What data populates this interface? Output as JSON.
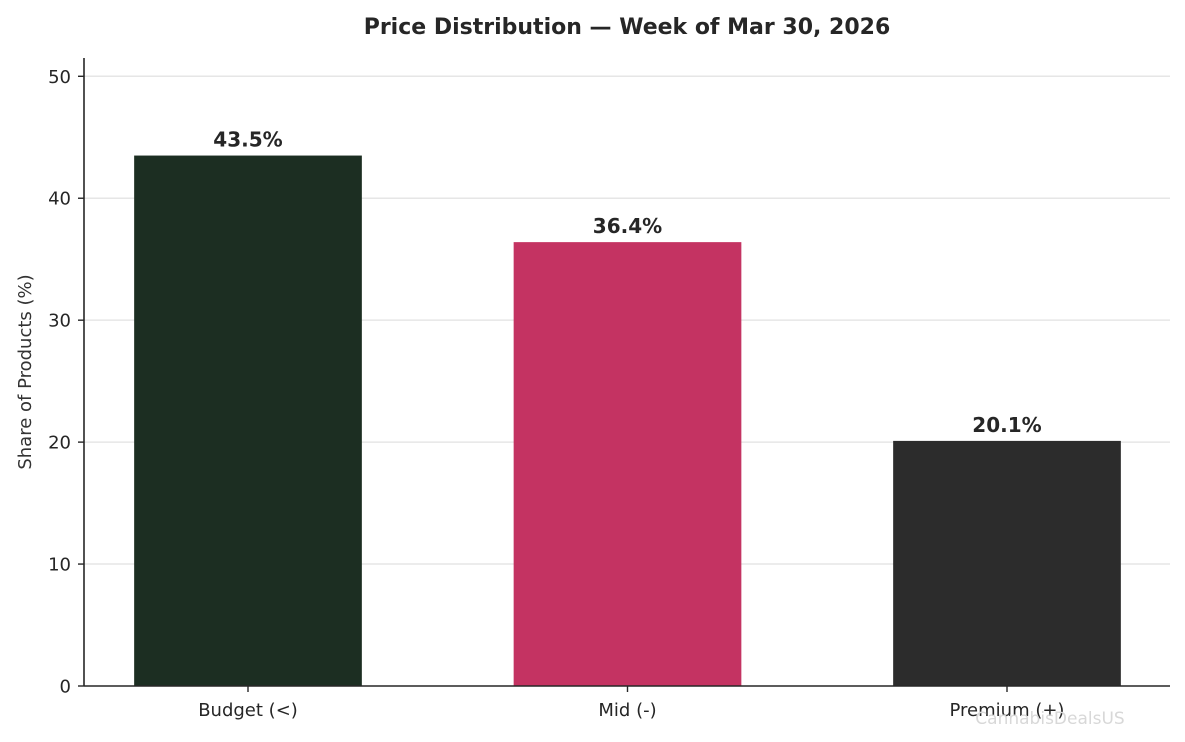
{
  "chart_data": {
    "type": "bar",
    "title": "Price Distribution — Week of Mar 30, 2026",
    "xlabel": "",
    "ylabel": "Share of Products (%)",
    "categories": [
      "Budget (<)",
      "Mid (-)",
      "Premium (+)"
    ],
    "values": [
      43.5,
      36.4,
      20.1
    ],
    "value_labels": [
      "43.5%",
      "36.4%",
      "20.1%"
    ],
    "colors": [
      "#1c2e22",
      "#c43362",
      "#2c2c2c"
    ],
    "ylim": [
      0,
      51.5
    ],
    "yticks": [
      0,
      10,
      20,
      30,
      40,
      50
    ],
    "ytick_labels": [
      "0",
      "10",
      "20",
      "30",
      "40",
      "50"
    ],
    "grid": "horizontal",
    "legend": "none"
  },
  "watermark": "CannabisDealsUS"
}
